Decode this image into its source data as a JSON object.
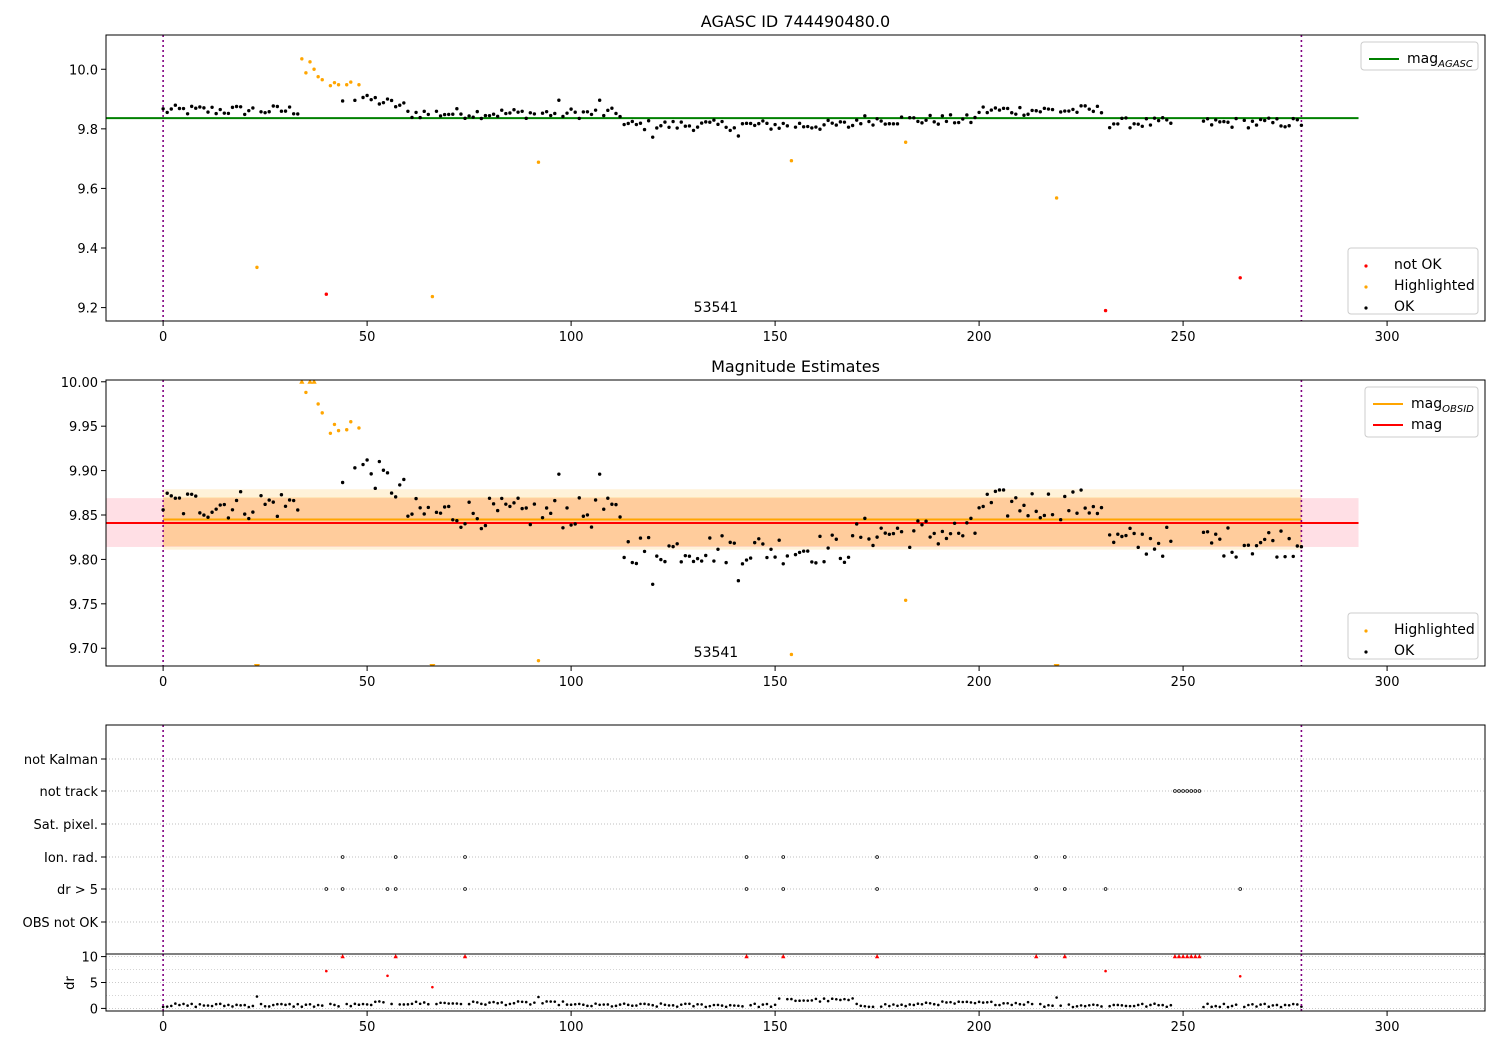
{
  "chart_data": [
    {
      "type": "scatter",
      "title": "AGASC ID 744490480.0",
      "xlim": [
        -14,
        324
      ],
      "ylim": [
        9.155,
        10.115
      ],
      "xticks": [
        0,
        50,
        100,
        150,
        200,
        250,
        300
      ],
      "yticks": [
        9.2,
        9.4,
        9.6,
        9.8,
        10.0
      ],
      "ytick_labels": [
        "9.2",
        "9.4",
        "9.6",
        "9.8",
        "10.0"
      ],
      "annotation": "53541",
      "vlines": [
        0,
        279
      ],
      "hlines": [
        {
          "name": "mag_AGASC",
          "y": 9.836,
          "x0": -14,
          "x1": 293,
          "color": "#008000"
        }
      ],
      "legends": [
        {
          "position": "top-right",
          "entries": [
            {
              "label": "mag",
              "sub": "AGASC",
              "kind": "line",
              "color": "#008000"
            }
          ]
        },
        {
          "position": "bottom-right",
          "entries": [
            {
              "label": "not OK",
              "kind": "dot",
              "color": "#ff0000"
            },
            {
              "label": "Highlighted",
              "kind": "dot",
              "color": "#ffa500"
            },
            {
              "label": "OK",
              "kind": "dot",
              "color": "#000000"
            }
          ]
        }
      ],
      "series": [
        {
          "name": "not OK",
          "color": "#ff0000",
          "points": [
            [
              40,
              9.245
            ],
            [
              231,
              9.19
            ],
            [
              264,
              9.3
            ]
          ]
        },
        {
          "name": "Highlighted",
          "color": "#ffa500",
          "points": [
            [
              23,
              9.335
            ],
            [
              34,
              10.035
            ],
            [
              35,
              9.988
            ],
            [
              36,
              10.025
            ],
            [
              37,
              10.0
            ],
            [
              38,
              9.975
            ],
            [
              39,
              9.965
            ],
            [
              41,
              9.945
            ],
            [
              42,
              9.955
            ],
            [
              43,
              9.948
            ],
            [
              45,
              9.948
            ],
            [
              46,
              9.957
            ],
            [
              48,
              9.948
            ],
            [
              66,
              9.237
            ],
            [
              92,
              9.688
            ],
            [
              154,
              9.693
            ],
            [
              182,
              9.755
            ],
            [
              219,
              9.568
            ]
          ]
        }
      ]
    },
    {
      "type": "scatter",
      "title": "Magnitude Estimates",
      "xlim": [
        -14,
        324
      ],
      "ylim": [
        9.68,
        10.002
      ],
      "xticks": [
        0,
        50,
        100,
        150,
        200,
        250,
        300
      ],
      "yticks": [
        9.7,
        9.75,
        9.8,
        9.85,
        9.9,
        9.95,
        10.0
      ],
      "ytick_labels": [
        "9.70",
        "9.75",
        "9.80",
        "9.85",
        "9.90",
        "9.95",
        "10.00"
      ],
      "annotation": "53541",
      "vlines": [
        0,
        279
      ],
      "bands": [
        {
          "y0": 9.814,
          "y1": 9.869,
          "x0": -14,
          "x1": 293,
          "color": "#ffc0cb",
          "opacity": 0.5
        },
        {
          "y0": 9.811,
          "y1": 9.879,
          "x0": 0,
          "x1": 279,
          "color": "#ffa500",
          "opacity": 0.15
        },
        {
          "y0": 9.815,
          "y1": 9.87,
          "x0": 0,
          "x1": 279,
          "color": "#ffa500",
          "opacity": 0.2
        }
      ],
      "hlines": [
        {
          "name": "mag_OBSID",
          "y": 9.845,
          "x0": 0,
          "x1": 279,
          "color": "#ffa500"
        },
        {
          "name": "mag",
          "y": 9.841,
          "x0": -14,
          "x1": 293,
          "color": "#ff0000"
        }
      ],
      "legends": [
        {
          "position": "top-right",
          "entries": [
            {
              "label": "mag",
              "sub": "OBSID",
              "kind": "line",
              "color": "#ffa500"
            },
            {
              "label": "mag",
              "kind": "line",
              "color": "#ff0000"
            }
          ]
        },
        {
          "position": "bottom-right",
          "entries": [
            {
              "label": "Highlighted",
              "kind": "dot",
              "color": "#ffa500"
            },
            {
              "label": "OK",
              "kind": "dot",
              "color": "#000000"
            }
          ]
        }
      ],
      "series": [
        {
          "name": "Highlighted",
          "color": "#ffa500",
          "points": [
            [
              35,
              9.988
            ],
            [
              38,
              9.975
            ],
            [
              39,
              9.965
            ],
            [
              41,
              9.942
            ],
            [
              42,
              9.952
            ],
            [
              43,
              9.945
            ],
            [
              45,
              9.946
            ],
            [
              46,
              9.955
            ],
            [
              48,
              9.948
            ],
            [
              92,
              9.686
            ],
            [
              154,
              9.693
            ],
            [
              182,
              9.754
            ]
          ]
        },
        {
          "name": "Highlighted (above range)",
          "color": "#ffa500",
          "marker": "triangle-up",
          "points": [
            [
              34,
              10.0
            ],
            [
              36,
              10.0
            ],
            [
              37,
              10.0
            ]
          ]
        },
        {
          "name": "Highlighted (below range)",
          "color": "#ffa500",
          "marker": "triangle-down",
          "points": [
            [
              23,
              9.68
            ],
            [
              66,
              9.68
            ],
            [
              219,
              9.68
            ]
          ]
        }
      ]
    },
    {
      "type": "scatter",
      "title": "",
      "xlim": [
        -14,
        324
      ],
      "xticks": [
        0,
        50,
        100,
        150,
        200,
        250,
        300
      ],
      "vlines": [
        0,
        279
      ],
      "flag_rows": [
        "not Kalman",
        "not track",
        "Sat. pixel.",
        "Ion. rad.",
        "dr > 5",
        "OBS not OK"
      ],
      "flags": {
        "not Kalman": [],
        "not track": [
          248,
          249,
          250,
          251,
          252,
          253,
          254
        ],
        "Sat. pixel.": [],
        "Ion. rad.": [
          44,
          57,
          74,
          143,
          152,
          175,
          214,
          221
        ],
        "dr > 5": [
          40,
          44,
          55,
          57,
          74,
          143,
          152,
          175,
          214,
          221,
          231,
          264
        ],
        "OBS not OK": []
      }
    },
    {
      "type": "scatter",
      "title": "",
      "ylabel": "dr",
      "xlim": [
        -14,
        324
      ],
      "ylim": [
        -0.5,
        10.5
      ],
      "xticks": [
        0,
        50,
        100,
        150,
        200,
        250,
        300
      ],
      "yticks": [
        0,
        5,
        10
      ],
      "ytick_labels": [
        "0",
        "5",
        "10"
      ],
      "vlines": [
        0,
        279
      ],
      "series": [
        {
          "name": "dr (capped, red)",
          "color": "#ff0000",
          "marker": "triangle-up",
          "points": [
            [
              44,
              10
            ],
            [
              57,
              10
            ],
            [
              74,
              10
            ],
            [
              143,
              10
            ],
            [
              152,
              10
            ],
            [
              175,
              10
            ],
            [
              214,
              10
            ],
            [
              221,
              10
            ],
            [
              248,
              10
            ],
            [
              249,
              10
            ],
            [
              250,
              10
            ],
            [
              251,
              10
            ],
            [
              252,
              10
            ],
            [
              253,
              10
            ],
            [
              254,
              10
            ]
          ]
        },
        {
          "name": "dr (red)",
          "color": "#ff0000",
          "points": [
            [
              40,
              7.2
            ],
            [
              55,
              6.3
            ],
            [
              66,
              4.1
            ],
            [
              231,
              7.2
            ],
            [
              264,
              6.2
            ]
          ]
        }
      ]
    }
  ]
}
